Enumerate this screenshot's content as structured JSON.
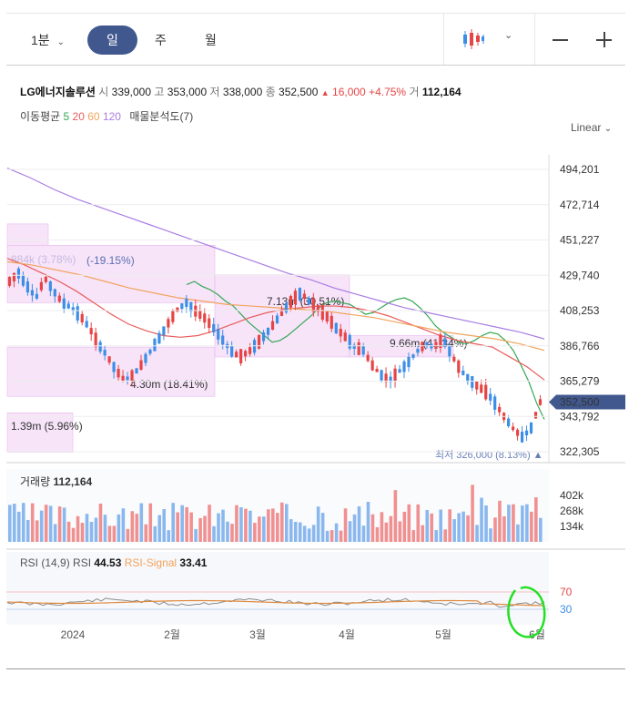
{
  "toolbar": {
    "interval_minute": "1분",
    "interval_day": "일",
    "interval_week": "주",
    "interval_month": "월",
    "chart_style_icon": "candlestick-icon",
    "minus_icon": "minus-icon",
    "plus_icon": "plus-icon"
  },
  "info": {
    "name": "LG에너지솔루션",
    "open_label": "시",
    "open": "339,000",
    "high_label": "고",
    "high": "353,000",
    "low_label": "저",
    "low": "338,000",
    "close_label": "종",
    "close": "352,500",
    "change": "16,000",
    "change_pct": "+4.75%",
    "volume_label": "거",
    "volume": "112,164"
  },
  "ma": {
    "label": "이동평균",
    "p5": "5",
    "p20": "20",
    "p60": "60",
    "p120": "120",
    "analysis": "매물분석도(7)"
  },
  "scale_label": "Linear",
  "colors": {
    "up": "#e64545",
    "down": "#3d8ee6",
    "ma5": "#34a853",
    "ma20": "#e95b5b",
    "ma60": "#f2a35c",
    "ma120": "#a97de3",
    "profile": "#f3d8f6",
    "price_tag": "#41588f"
  },
  "chart_data": {
    "type": "candlestick",
    "x_ticks": [
      "2024",
      "2월",
      "3월",
      "4월",
      "5월",
      "6월"
    ],
    "y_ticks": [
      "494,201",
      "472,714",
      "451,227",
      "429,740",
      "408,253",
      "386,766",
      "365,279",
      "343,792",
      "322,305"
    ],
    "price_tag": "352,500",
    "low_marker": {
      "label": "최저",
      "value": "326,000 (8.13%)"
    },
    "volume_profile": [
      {
        "range": [
          448000,
          461000
        ],
        "label": "884k (3.78%)"
      },
      {
        "range": [
          413000,
          448000
        ],
        "label": "(-19.15%)"
      },
      {
        "range": [
          356000,
          386000
        ],
        "label": "4.30m (18.41%)"
      },
      {
        "range": [
          380000,
          430000
        ],
        "label": "7.13m (30.51%)"
      },
      {
        "range": [
          380000,
          393000
        ],
        "label": "9.66m (41.34%)"
      },
      {
        "range": [
          322000,
          346000
        ],
        "label": "1.39m (5.96%)"
      }
    ],
    "series": [
      {
        "name": "5",
        "values": [
          424000,
          426000,
          423000,
          421000,
          418000,
          414000,
          411000,
          406000,
          401000,
          397000,
          393000,
          389000,
          390000,
          393000,
          397000,
          401000,
          405000,
          410000,
          413000,
          414000,
          413000,
          412000,
          409000,
          406000,
          407000,
          410000,
          413000,
          415000,
          416000,
          414000,
          410000,
          405000,
          399000,
          395000,
          392000,
          389000,
          388000,
          390000,
          393000,
          395000,
          394000,
          390000,
          384000,
          375000,
          365000,
          352000,
          342000
        ]
      },
      {
        "name": "20",
        "values": [
          440000,
          436000,
          431000,
          426000,
          420000,
          413000,
          406000,
          400000,
          396000,
          393000,
          392000,
          393000,
          396000,
          400000,
          404000,
          407000,
          409000,
          410000,
          411000,
          411000,
          410000,
          408000,
          405000,
          401000,
          397000,
          393000,
          390000,
          388000,
          386000,
          380000,
          374000,
          366000
        ]
      },
      {
        "name": "60",
        "values": [
          438000,
          436000,
          433000,
          430000,
          426000,
          422000,
          419000,
          416000,
          414000,
          412000,
          411000,
          410000,
          409000,
          408000,
          406000,
          404000,
          401000,
          398000,
          395000,
          393000,
          391000,
          388000,
          384000
        ]
      },
      {
        "name": "120",
        "values": [
          495000,
          489000,
          482000,
          476000,
          471000,
          466000,
          461000,
          456000,
          451000,
          446000,
          441000,
          436000,
          431000,
          427000,
          422000,
          418000,
          414000,
          410000,
          407000,
          404000,
          401000,
          398000,
          395000,
          391000
        ]
      }
    ],
    "volume": {
      "label": "거래량",
      "value": "112,164",
      "y_ticks": [
        "402k",
        "268k",
        "134k"
      ]
    },
    "rsi": {
      "label": "RSI (14,9)",
      "rsi_label": "RSI",
      "rsi_value": "44.53",
      "signal_label": "RSI-Signal",
      "signal_value": "33.41",
      "levels": [
        "70",
        "30"
      ]
    }
  }
}
